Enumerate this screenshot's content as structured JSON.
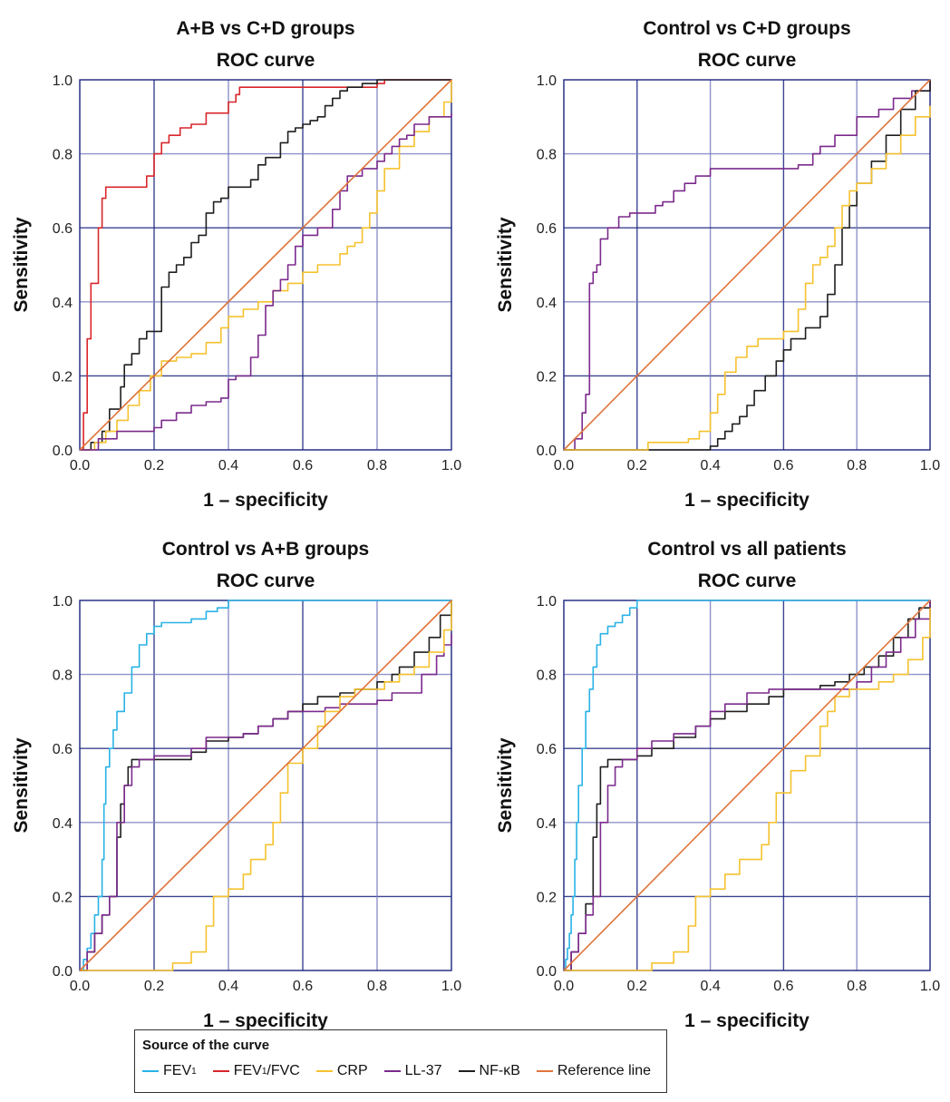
{
  "colors": {
    "FEV1": "#29b2e6",
    "FEV1/FVC": "#d8262b",
    "CRP": "#f5c22e",
    "LL-37": "#7b2a8c",
    "NF-kB": "#1f1f1f",
    "Reference line": "#e0743a",
    "gridDark": "#1a237e",
    "gridLight": "#7b7fbf"
  },
  "legend": {
    "title": "Source of the curve",
    "items": [
      {
        "key": "FEV1",
        "label": "FEV",
        "sub": "1",
        "suffix": ""
      },
      {
        "key": "FEV1/FVC",
        "label": "FEV",
        "sub": "1",
        "suffix": "/FVC"
      },
      {
        "key": "CRP",
        "label": "CRP",
        "sub": "",
        "suffix": ""
      },
      {
        "key": "LL-37",
        "label": "LL-37",
        "sub": "",
        "suffix": ""
      },
      {
        "key": "NF-kB",
        "label": "NF-κB",
        "sub": "",
        "suffix": ""
      },
      {
        "key": "Reference line",
        "label": "Reference line",
        "sub": "",
        "suffix": ""
      }
    ]
  },
  "chart_data": [
    {
      "type": "line",
      "title": "A+B vs C+D groups",
      "subtitle": "ROC curve",
      "xlabel": "1 – specificity",
      "ylabel": "Sensitivity",
      "xlim": [
        0,
        1
      ],
      "ylim": [
        0,
        1
      ],
      "ticks": [
        "0.0",
        "0.2",
        "0.4",
        "0.6",
        "0.8",
        "1.0"
      ],
      "grid": true,
      "series": [
        {
          "name": "FEV1/FVC",
          "x": [
            0,
            0.01,
            0.02,
            0.03,
            0.05,
            0.06,
            0.07,
            0.12,
            0.18,
            0.2,
            0.22,
            0.24,
            0.27,
            0.3,
            0.34,
            0.36,
            0.4,
            0.42,
            0.43,
            0.46,
            0.5,
            0.54,
            0.6,
            0.7,
            0.8,
            0.82,
            1
          ],
          "y": [
            0,
            0.1,
            0.3,
            0.45,
            0.6,
            0.68,
            0.71,
            0.71,
            0.74,
            0.8,
            0.83,
            0.85,
            0.87,
            0.88,
            0.91,
            0.91,
            0.94,
            0.96,
            0.98,
            0.98,
            0.98,
            0.98,
            0.98,
            0.98,
            0.99,
            1,
            1
          ]
        },
        {
          "name": "NF-kB",
          "x": [
            0,
            0.03,
            0.06,
            0.08,
            0.11,
            0.12,
            0.14,
            0.16,
            0.18,
            0.2,
            0.22,
            0.24,
            0.26,
            0.28,
            0.3,
            0.32,
            0.34,
            0.36,
            0.38,
            0.4,
            0.44,
            0.46,
            0.48,
            0.5,
            0.54,
            0.56,
            0.58,
            0.6,
            0.62,
            0.64,
            0.66,
            0.68,
            0.7,
            0.72,
            0.76,
            0.8,
            0.84,
            1
          ],
          "y": [
            0,
            0.02,
            0.05,
            0.11,
            0.17,
            0.23,
            0.26,
            0.3,
            0.32,
            0.32,
            0.44,
            0.48,
            0.5,
            0.52,
            0.56,
            0.58,
            0.64,
            0.67,
            0.68,
            0.71,
            0.71,
            0.73,
            0.77,
            0.79,
            0.83,
            0.86,
            0.87,
            0.88,
            0.89,
            0.9,
            0.93,
            0.95,
            0.97,
            0.98,
            0.99,
            1,
            1,
            1
          ]
        },
        {
          "name": "CRP",
          "x": [
            0,
            0.04,
            0.07,
            0.1,
            0.13,
            0.16,
            0.19,
            0.22,
            0.26,
            0.3,
            0.34,
            0.38,
            0.4,
            0.44,
            0.48,
            0.52,
            0.56,
            0.6,
            0.64,
            0.7,
            0.72,
            0.74,
            0.76,
            0.78,
            0.8,
            0.82,
            0.86,
            0.9,
            0.94,
            0.98,
            1
          ],
          "y": [
            0,
            0.02,
            0.05,
            0.08,
            0.12,
            0.16,
            0.2,
            0.24,
            0.25,
            0.26,
            0.29,
            0.33,
            0.36,
            0.38,
            0.4,
            0.43,
            0.45,
            0.48,
            0.5,
            0.53,
            0.55,
            0.56,
            0.6,
            0.64,
            0.7,
            0.76,
            0.82,
            0.86,
            0.9,
            0.94,
            1
          ]
        },
        {
          "name": "LL-37",
          "x": [
            0,
            0.05,
            0.1,
            0.16,
            0.2,
            0.22,
            0.26,
            0.3,
            0.34,
            0.38,
            0.4,
            0.42,
            0.46,
            0.48,
            0.5,
            0.52,
            0.54,
            0.56,
            0.58,
            0.6,
            0.64,
            0.68,
            0.7,
            0.72,
            0.76,
            0.8,
            0.82,
            0.84,
            0.86,
            0.88,
            0.9,
            0.94,
            1
          ],
          "y": [
            0,
            0.03,
            0.05,
            0.05,
            0.06,
            0.08,
            0.1,
            0.12,
            0.13,
            0.14,
            0.19,
            0.2,
            0.25,
            0.31,
            0.39,
            0.43,
            0.46,
            0.5,
            0.55,
            0.58,
            0.6,
            0.65,
            0.7,
            0.74,
            0.76,
            0.78,
            0.8,
            0.82,
            0.84,
            0.85,
            0.88,
            0.9,
            0.91
          ]
        },
        {
          "name": "Reference line",
          "x": [
            0,
            1
          ],
          "y": [
            0,
            1
          ]
        }
      ]
    },
    {
      "type": "line",
      "title": "Control vs C+D groups",
      "subtitle": "ROC curve",
      "xlabel": "1 – specificity",
      "ylabel": "Sensitivity",
      "xlim": [
        0,
        1
      ],
      "ylim": [
        0,
        1
      ],
      "ticks": [
        "0.0",
        "0.2",
        "0.4",
        "0.6",
        "0.8",
        "1.0"
      ],
      "grid": true,
      "series": [
        {
          "name": "LL-37",
          "x": [
            0,
            0.03,
            0.05,
            0.06,
            0.07,
            0.07,
            0.08,
            0.09,
            0.1,
            0.12,
            0.15,
            0.18,
            0.22,
            0.25,
            0.27,
            0.3,
            0.33,
            0.36,
            0.4,
            0.5,
            0.58,
            0.64,
            0.68,
            0.7,
            0.74,
            0.8,
            0.86,
            0.9,
            0.95,
            1
          ],
          "y": [
            0,
            0.03,
            0.1,
            0.15,
            0.2,
            0.45,
            0.48,
            0.5,
            0.57,
            0.6,
            0.63,
            0.64,
            0.64,
            0.66,
            0.67,
            0.7,
            0.72,
            0.74,
            0.76,
            0.76,
            0.76,
            0.77,
            0.8,
            0.82,
            0.85,
            0.9,
            0.92,
            0.95,
            0.97,
            1
          ]
        },
        {
          "name": "NF-kB",
          "x": [
            0,
            0.38,
            0.4,
            0.42,
            0.44,
            0.46,
            0.48,
            0.5,
            0.52,
            0.55,
            0.58,
            0.6,
            0.62,
            0.66,
            0.7,
            0.72,
            0.74,
            0.76,
            0.78,
            0.8,
            0.84,
            0.88,
            0.92,
            0.96,
            1
          ],
          "y": [
            0,
            0,
            0.01,
            0.03,
            0.05,
            0.07,
            0.09,
            0.12,
            0.16,
            0.2,
            0.24,
            0.27,
            0.3,
            0.33,
            0.36,
            0.42,
            0.5,
            0.6,
            0.66,
            0.72,
            0.78,
            0.85,
            0.92,
            0.97,
            1
          ]
        },
        {
          "name": "CRP",
          "x": [
            0,
            0.23,
            0.3,
            0.34,
            0.37,
            0.4,
            0.42,
            0.44,
            0.47,
            0.5,
            0.53,
            0.56,
            0.6,
            0.64,
            0.66,
            0.68,
            0.7,
            0.72,
            0.74,
            0.76,
            0.78,
            0.8,
            0.84,
            0.88,
            0.92,
            0.96,
            1
          ],
          "y": [
            0,
            0.02,
            0.02,
            0.03,
            0.05,
            0.1,
            0.15,
            0.21,
            0.25,
            0.28,
            0.3,
            0.3,
            0.32,
            0.38,
            0.45,
            0.5,
            0.52,
            0.55,
            0.6,
            0.66,
            0.7,
            0.72,
            0.76,
            0.8,
            0.85,
            0.9,
            0.93
          ]
        },
        {
          "name": "Reference line",
          "x": [
            0,
            1
          ],
          "y": [
            0,
            1
          ]
        }
      ]
    },
    {
      "type": "line",
      "title": "Control vs A+B groups",
      "subtitle": "ROC curve",
      "xlabel": "1 – specificity",
      "ylabel": "Sensitivity",
      "xlim": [
        0,
        1
      ],
      "ylim": [
        0,
        1
      ],
      "ticks": [
        "0.0",
        "0.2",
        "0.4",
        "0.6",
        "0.8",
        "1.0"
      ],
      "grid": true,
      "series": [
        {
          "name": "FEV1",
          "x": [
            0,
            0.01,
            0.02,
            0.03,
            0.04,
            0.05,
            0.06,
            0.065,
            0.07,
            0.08,
            0.09,
            0.1,
            0.12,
            0.14,
            0.16,
            0.18,
            0.2,
            0.22,
            0.26,
            0.28,
            0.3,
            0.34,
            0.37,
            0.4,
            0.45,
            1
          ],
          "y": [
            0,
            0.03,
            0.06,
            0.1,
            0.15,
            0.2,
            0.3,
            0.45,
            0.55,
            0.6,
            0.65,
            0.7,
            0.75,
            0.82,
            0.88,
            0.91,
            0.93,
            0.94,
            0.94,
            0.94,
            0.95,
            0.97,
            0.98,
            1,
            1,
            1
          ]
        },
        {
          "name": "NF-kB",
          "x": [
            0,
            0.02,
            0.04,
            0.06,
            0.08,
            0.1,
            0.11,
            0.12,
            0.13,
            0.14,
            0.16,
            0.2,
            0.25,
            0.3,
            0.34,
            0.4,
            0.44,
            0.48,
            0.52,
            0.56,
            0.6,
            0.64,
            0.7,
            0.74,
            0.76,
            0.8,
            0.84,
            0.86,
            0.9,
            0.94,
            0.97,
            1
          ],
          "y": [
            0,
            0.05,
            0.1,
            0.15,
            0.2,
            0.36,
            0.45,
            0.5,
            0.55,
            0.57,
            0.57,
            0.57,
            0.57,
            0.59,
            0.62,
            0.63,
            0.64,
            0.66,
            0.68,
            0.7,
            0.72,
            0.74,
            0.75,
            0.76,
            0.76,
            0.78,
            0.8,
            0.82,
            0.86,
            0.9,
            0.96,
            1
          ]
        },
        {
          "name": "LL-37",
          "x": [
            0,
            0.02,
            0.04,
            0.06,
            0.08,
            0.1,
            0.12,
            0.14,
            0.16,
            0.2,
            0.26,
            0.3,
            0.34,
            0.4,
            0.44,
            0.48,
            0.52,
            0.56,
            0.6,
            0.66,
            0.7,
            0.76,
            0.8,
            0.84,
            0.88,
            0.92,
            0.96,
            0.98,
            1
          ],
          "y": [
            0,
            0.05,
            0.1,
            0.15,
            0.2,
            0.4,
            0.5,
            0.55,
            0.57,
            0.58,
            0.58,
            0.6,
            0.63,
            0.63,
            0.64,
            0.66,
            0.68,
            0.7,
            0.7,
            0.71,
            0.72,
            0.72,
            0.73,
            0.75,
            0.75,
            0.8,
            0.85,
            0.88,
            0.91
          ]
        },
        {
          "name": "CRP",
          "x": [
            0,
            0.25,
            0.3,
            0.34,
            0.36,
            0.4,
            0.44,
            0.46,
            0.48,
            0.5,
            0.52,
            0.54,
            0.56,
            0.6,
            0.64,
            0.66,
            0.7,
            0.74,
            0.78,
            0.82,
            0.86,
            0.9,
            0.94,
            0.98,
            1
          ],
          "y": [
            0,
            0.02,
            0.05,
            0.12,
            0.2,
            0.22,
            0.26,
            0.3,
            0.3,
            0.34,
            0.4,
            0.48,
            0.56,
            0.6,
            0.66,
            0.7,
            0.74,
            0.76,
            0.76,
            0.78,
            0.8,
            0.82,
            0.86,
            0.92,
            1
          ]
        },
        {
          "name": "Reference line",
          "x": [
            0,
            1
          ],
          "y": [
            0,
            1
          ]
        }
      ]
    },
    {
      "type": "line",
      "title": "Control vs all patients",
      "subtitle": "ROC curve",
      "xlabel": "1 – specificity",
      "ylabel": "Sensitivity",
      "xlim": [
        0,
        1
      ],
      "ylim": [
        0,
        1
      ],
      "ticks": [
        "0.0",
        "0.2",
        "0.4",
        "0.6",
        "0.8",
        "1.0"
      ],
      "grid": true,
      "series": [
        {
          "name": "FEV1",
          "x": [
            0,
            0.005,
            0.01,
            0.015,
            0.02,
            0.025,
            0.03,
            0.035,
            0.04,
            0.05,
            0.06,
            0.07,
            0.08,
            0.09,
            0.1,
            0.12,
            0.14,
            0.16,
            0.18,
            0.2,
            0.3,
            1
          ],
          "y": [
            0,
            0.03,
            0.06,
            0.1,
            0.15,
            0.2,
            0.3,
            0.4,
            0.5,
            0.6,
            0.7,
            0.76,
            0.82,
            0.88,
            0.91,
            0.93,
            0.94,
            0.96,
            0.98,
            1,
            1,
            1
          ]
        },
        {
          "name": "NF-kB",
          "x": [
            0,
            0.02,
            0.04,
            0.06,
            0.08,
            0.09,
            0.1,
            0.12,
            0.16,
            0.2,
            0.24,
            0.3,
            0.36,
            0.4,
            0.44,
            0.5,
            0.56,
            0.6,
            0.64,
            0.7,
            0.74,
            0.78,
            0.82,
            0.86,
            0.9,
            0.94,
            0.97,
            1
          ],
          "y": [
            0,
            0.05,
            0.1,
            0.18,
            0.36,
            0.45,
            0.55,
            0.57,
            0.57,
            0.58,
            0.6,
            0.63,
            0.66,
            0.68,
            0.7,
            0.72,
            0.74,
            0.76,
            0.76,
            0.77,
            0.78,
            0.8,
            0.82,
            0.85,
            0.9,
            0.95,
            0.98,
            1
          ]
        },
        {
          "name": "LL-37",
          "x": [
            0,
            0.02,
            0.04,
            0.06,
            0.08,
            0.1,
            0.12,
            0.14,
            0.16,
            0.2,
            0.24,
            0.3,
            0.36,
            0.4,
            0.44,
            0.5,
            0.56,
            0.6,
            0.66,
            0.7,
            0.76,
            0.8,
            0.84,
            0.88,
            0.92,
            0.96,
            1
          ],
          "y": [
            0,
            0.05,
            0.1,
            0.15,
            0.2,
            0.4,
            0.5,
            0.55,
            0.57,
            0.6,
            0.62,
            0.64,
            0.66,
            0.7,
            0.72,
            0.75,
            0.76,
            0.76,
            0.76,
            0.76,
            0.76,
            0.78,
            0.82,
            0.86,
            0.9,
            0.95,
            1
          ]
        },
        {
          "name": "CRP",
          "x": [
            0,
            0.24,
            0.3,
            0.34,
            0.36,
            0.4,
            0.44,
            0.48,
            0.52,
            0.54,
            0.56,
            0.58,
            0.62,
            0.66,
            0.7,
            0.72,
            0.74,
            0.78,
            0.82,
            0.86,
            0.9,
            0.94,
            0.98,
            1
          ],
          "y": [
            0,
            0.02,
            0.05,
            0.12,
            0.2,
            0.22,
            0.26,
            0.3,
            0.3,
            0.34,
            0.4,
            0.48,
            0.54,
            0.58,
            0.66,
            0.7,
            0.74,
            0.76,
            0.76,
            0.78,
            0.8,
            0.84,
            0.9,
            0.98
          ]
        },
        {
          "name": "Reference line",
          "x": [
            0,
            1
          ],
          "y": [
            0,
            1
          ]
        }
      ]
    }
  ]
}
